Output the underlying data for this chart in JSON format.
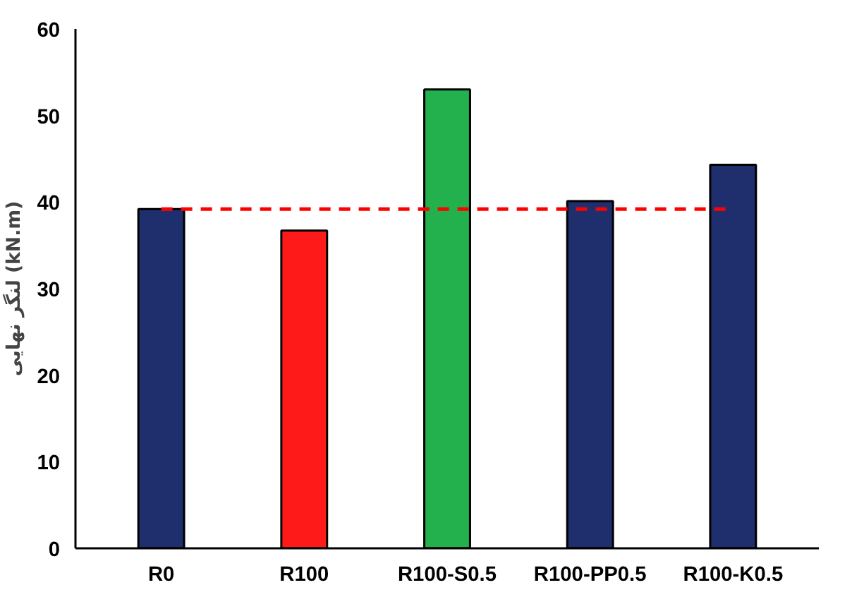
{
  "chart_data": {
    "type": "bar",
    "ylabel": "لنگر نهایی (kN.m)",
    "categories": [
      "R0",
      "R100",
      "R100-S0.5",
      "R100-PP0.5",
      "R100-K0.5"
    ],
    "values": [
      39.2,
      36.7,
      53.0,
      40.1,
      44.3
    ],
    "colors": [
      "#1f2f6e",
      "#ff1a1a",
      "#22b14c",
      "#1f2f6e",
      "#1f2f6e"
    ],
    "ylim": [
      0,
      60
    ],
    "yticks": [
      0,
      10,
      20,
      30,
      40,
      50,
      60
    ],
    "grid": false,
    "ref_lines": [
      {
        "axis": "y",
        "value": 39.2,
        "color": "#ff0000",
        "line_style": "dashed"
      }
    ]
  }
}
